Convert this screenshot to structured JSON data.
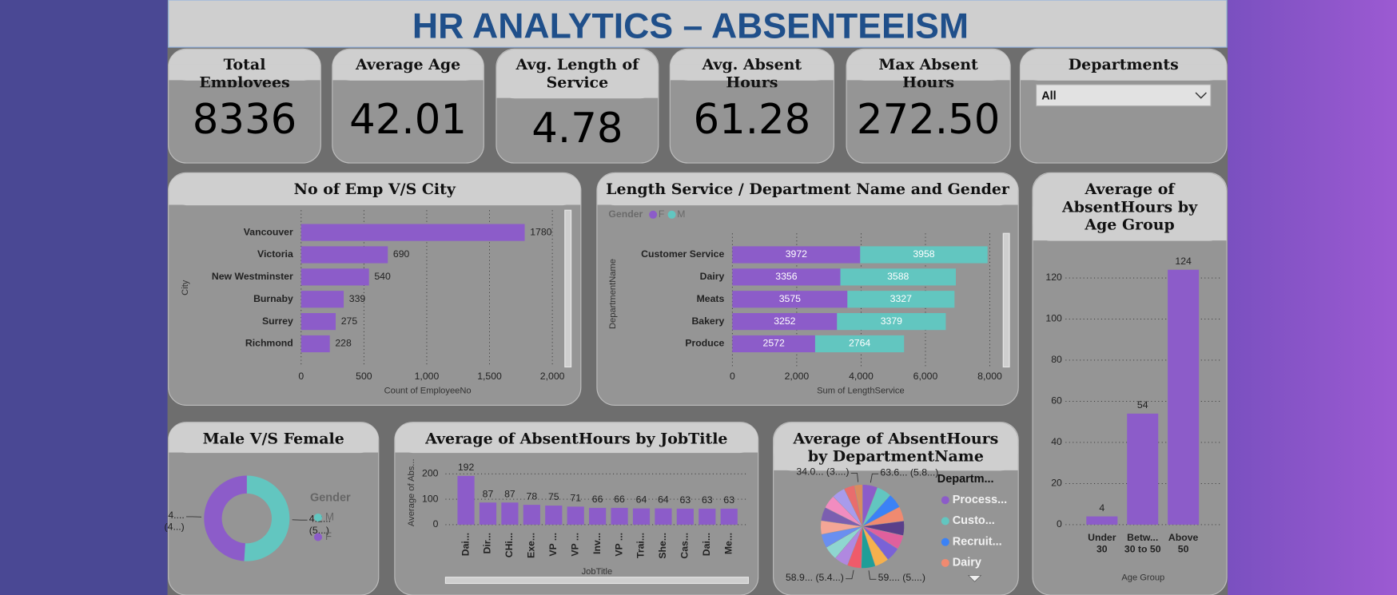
{
  "header": {
    "title": "HR ANALYTICS – ABSENTEEISM"
  },
  "cards": [
    {
      "label": "Total Employees",
      "value": "8336"
    },
    {
      "label": "Average Age",
      "value": "42.01"
    },
    {
      "label": "Avg. Length of Service",
      "value": "4.78"
    },
    {
      "label": "Avg. Absent Hours",
      "value": "61.28"
    },
    {
      "label": "Max Absent Hours",
      "value": "272.50"
    }
  ],
  "slicer": {
    "label": "Departments",
    "selected": "All"
  },
  "chart_data": [
    {
      "type": "hbar",
      "title": "No of Emp V/S City",
      "categories": [
        "Vancouver",
        "Victoria",
        "New Westminster",
        "Burnaby",
        "Surrey",
        "Richmond"
      ],
      "values": [
        1780,
        690,
        540,
        339,
        275,
        228
      ],
      "color": "#8c5cc9",
      "xlim": [
        0,
        2050
      ],
      "xticks": [
        0,
        500,
        {
          "value": 1000,
          "label": "1,000"
        },
        {
          "value": 1500,
          "label": "1,500"
        },
        {
          "value": 2000,
          "label": "2,000"
        }
      ],
      "xlabel": "Count of EmployeeNo",
      "ylabel": "City",
      "grid": true
    },
    {
      "type": "stacked_bar",
      "title": "Length Service / Department Name and Gender",
      "legend_title": "Gender",
      "legend": "top-left",
      "categories": [
        "Customer Service",
        "Dairy",
        "Meats",
        "Bakery",
        "Produce"
      ],
      "series": [
        {
          "name": "F",
          "color": "#8c5cc9",
          "values": [
            3972,
            3356,
            3575,
            3252,
            2572
          ]
        },
        {
          "name": "M",
          "color": "#62c6c0",
          "values": [
            3958,
            3588,
            3327,
            3379,
            2764
          ]
        }
      ],
      "xlim": [
        0,
        8250
      ],
      "xticks": [
        0,
        {
          "value": 2000,
          "label": "2,000"
        },
        {
          "value": 4000,
          "label": "4,000"
        },
        {
          "value": 6000,
          "label": "6,000"
        },
        {
          "value": 8000,
          "label": "8,000"
        }
      ],
      "xlabel": "Sum of LengthService",
      "ylabel": "DepartmentName",
      "grid": true
    },
    {
      "type": "bar",
      "title": "Average of AbsentHours by Age Group",
      "categories": [
        "Under 30",
        "Betw... 30 to 50",
        "Above 50"
      ],
      "values": [
        4,
        54,
        124
      ],
      "color": "#8c5cc9",
      "ylim": [
        0,
        125
      ],
      "yticks": [
        0,
        20,
        40,
        60,
        80,
        100,
        120
      ],
      "xlabel": "Age Group",
      "grid": true
    },
    {
      "type": "donut",
      "title": "Male V/S Female",
      "legend_title": "Gender",
      "legend": "right",
      "categories": [
        "M",
        "F"
      ],
      "values": [
        4250,
        4086
      ],
      "value_labels": [
        "4.2... (5...)",
        "4.... (4...)"
      ],
      "colors": [
        "#62c6c0",
        "#8c5cc9"
      ]
    },
    {
      "type": "bar",
      "title": "Average of AbsentHours by JobTitle",
      "categories": [
        "Dai...",
        "Dir...",
        "CHi...",
        "Exe...",
        "VP ...",
        "VP ...",
        "Inv...",
        "VP ...",
        "Trai...",
        "She...",
        "Cas...",
        "Dai...",
        "Me..."
      ],
      "values": [
        192,
        87,
        87,
        78,
        75,
        71,
        66,
        66,
        64,
        64,
        63,
        63,
        63
      ],
      "color": "#8c5cc9",
      "ylim": [
        0,
        220
      ],
      "yticks": [
        0,
        100,
        200
      ],
      "xlabel": "JobTitle",
      "ylabel": "Average of Abs...",
      "grid": true
    },
    {
      "type": "pie",
      "title": "Average of AbsentHours by DepartmentName",
      "legend_title": "Departm...",
      "legend": "right",
      "categories": [
        "Process...",
        "Custo...",
        "Recruit...",
        "Dairy",
        null,
        null,
        null,
        null,
        null,
        null,
        null,
        null,
        null,
        null,
        null,
        null,
        null,
        null,
        null
      ],
      "values": [
        63.6,
        62.5,
        61.9,
        61.2,
        60.8,
        60.1,
        59.7,
        59.4,
        59.0,
        58.9,
        58.5,
        58.2,
        57.9,
        57.5,
        57.0,
        56.4,
        55.8,
        44.2,
        34.0
      ],
      "value_labels": [
        "63.6... (5.8...)",
        null,
        null,
        null,
        null,
        null,
        null,
        null,
        "59.... (5....)",
        "58.9... (5.4...)",
        null,
        null,
        null,
        null,
        null,
        null,
        null,
        null,
        "34.0... (3....)"
      ],
      "colors": [
        "#8c5cc9",
        "#62c6c0",
        "#3b82f6",
        "#f08a70",
        "#5a3f8a",
        "#e0609d",
        "#7a62d6",
        "#f6b04d",
        "#1f9e98",
        "#ef5b6a",
        "#b088e0",
        "#8fd6d0",
        "#6a8ff0",
        "#f4a696",
        "#7b5fb0",
        "#f28cc0",
        "#a89bec",
        "#e86d6d",
        "#d98c5f"
      ]
    }
  ]
}
